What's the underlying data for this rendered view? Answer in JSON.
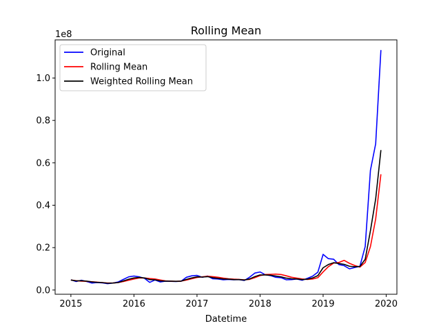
{
  "chart_data": {
    "type": "line",
    "title": "Rolling Mean",
    "xlabel": "Datetime",
    "ylabel": "",
    "y_offset_label": "1e8",
    "xlim": [
      2014.75,
      2020.17
    ],
    "ylim": [
      -2000000,
      118000000
    ],
    "x_ticks": [
      2015,
      2016,
      2017,
      2018,
      2019,
      2020
    ],
    "x_tick_labels": [
      "2015",
      "2016",
      "2017",
      "2018",
      "2019",
      "2020"
    ],
    "y_ticks": [
      0,
      20000000,
      40000000,
      60000000,
      80000000,
      100000000
    ],
    "y_tick_labels": [
      "0.0",
      "0.2",
      "0.4",
      "0.6",
      "0.8",
      "1.0"
    ],
    "legend_position": "top-left",
    "grid": false,
    "x": [
      2015.0,
      2015.083,
      2015.167,
      2015.25,
      2015.333,
      2015.417,
      2015.5,
      2015.583,
      2015.667,
      2015.75,
      2015.833,
      2015.917,
      2016.0,
      2016.083,
      2016.167,
      2016.25,
      2016.333,
      2016.417,
      2016.5,
      2016.583,
      2016.667,
      2016.75,
      2016.833,
      2016.917,
      2017.0,
      2017.083,
      2017.167,
      2017.25,
      2017.333,
      2017.417,
      2017.5,
      2017.583,
      2017.667,
      2017.75,
      2017.833,
      2017.917,
      2018.0,
      2018.083,
      2018.167,
      2018.25,
      2018.333,
      2018.417,
      2018.5,
      2018.583,
      2018.667,
      2018.75,
      2018.833,
      2018.917,
      2019.0,
      2019.083,
      2019.167,
      2019.25,
      2019.333,
      2019.417,
      2019.5,
      2019.583,
      2019.667,
      2019.75,
      2019.833,
      2019.917
    ],
    "series": [
      {
        "name": "Original",
        "color": "#0000ff",
        "values": [
          4800000,
          4000000,
          4600000,
          4000000,
          3300000,
          3500000,
          3400000,
          3000000,
          3300000,
          3800000,
          5000000,
          6200000,
          6600000,
          6200000,
          5500000,
          3600000,
          4700000,
          3800000,
          4200000,
          4100000,
          4000000,
          4200000,
          6000000,
          6700000,
          6900000,
          6000000,
          6600000,
          5300000,
          5200000,
          4800000,
          5000000,
          4800000,
          4900000,
          4500000,
          6000000,
          8000000,
          8500000,
          7200000,
          6800000,
          6000000,
          5800000,
          4800000,
          4900000,
          5200000,
          4600000,
          5500000,
          6500000,
          8400000,
          16800000,
          14800000,
          14500000,
          12000000,
          11500000,
          10000000,
          10600000,
          11200000,
          20500000,
          56500000,
          69000000,
          113200000
        ]
      },
      {
        "name": "Rolling Mean",
        "color": "#ff0000",
        "values": [
          4700000,
          4400000,
          4200000,
          4100000,
          3900000,
          3700000,
          3500000,
          3300000,
          3300000,
          3500000,
          4000000,
          4600000,
          5200000,
          5700000,
          5700000,
          5400000,
          5200000,
          4700000,
          4300000,
          4200000,
          4100000,
          4200000,
          4700000,
          5300000,
          5900000,
          6200000,
          6500000,
          6300000,
          6000000,
          5600000,
          5300000,
          5100000,
          5000000,
          4800000,
          5000000,
          5800000,
          6800000,
          7300000,
          7400000,
          7500000,
          7300000,
          6700000,
          6000000,
          5600000,
          5200000,
          5000000,
          5200000,
          5800000,
          8500000,
          11000000,
          12700000,
          13000000,
          14000000,
          12600000,
          11600000,
          10800000,
          13000000,
          20500000,
          33500000,
          54600000
        ]
      },
      {
        "name": "Weighted Rolling Mean",
        "color": "#000000",
        "values": [
          4700000,
          4300000,
          4400000,
          4200000,
          3800000,
          3600000,
          3500000,
          3200000,
          3300000,
          3500000,
          4300000,
          5100000,
          5700000,
          5900000,
          5700000,
          4900000,
          4800000,
          4300000,
          4200000,
          4200000,
          4100000,
          4200000,
          5000000,
          5700000,
          6200000,
          6100000,
          6300000,
          5800000,
          5500000,
          5200000,
          5100000,
          4900000,
          4900000,
          4700000,
          5200000,
          6300000,
          7100000,
          7100000,
          7000000,
          6600000,
          6200000,
          5600000,
          5300000,
          5200000,
          4900000,
          5100000,
          5700000,
          6800000,
          10500000,
          12000000,
          12900000,
          12500000,
          12100000,
          11200000,
          11000000,
          11100000,
          14500000,
          28000000,
          43000000,
          66000000
        ]
      }
    ]
  }
}
